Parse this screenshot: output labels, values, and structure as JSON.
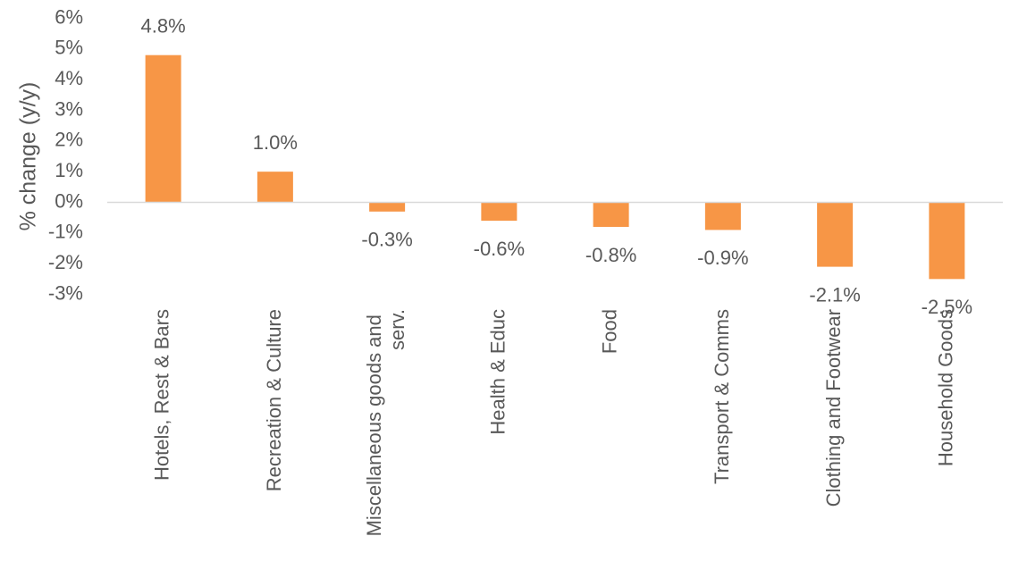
{
  "chart_data": {
    "type": "bar",
    "y_label": "% change (y/y)",
    "categories": [
      "Hotels, Rest & Bars",
      "Recreation & Culture",
      "Miscellaneous goods and serv.",
      "Health & Educ",
      "Food",
      "Transport & Comms",
      "Clothing and Footwear",
      "Household Goods"
    ],
    "values": [
      4.8,
      1.0,
      -0.3,
      -0.6,
      -0.8,
      -0.9,
      -2.1,
      -2.5
    ],
    "value_labels": [
      "4.8%",
      "1.0%",
      "-0.3%",
      "-0.6%",
      "-0.8%",
      "-0.9%",
      "-2.1%",
      "-2.5%"
    ],
    "color": "#f79646",
    "ylim": [
      -3,
      6
    ],
    "yticks": [
      {
        "value": -3,
        "label": "-3%"
      },
      {
        "value": -2,
        "label": "-2%"
      },
      {
        "value": -1,
        "label": "-1%"
      },
      {
        "value": 0,
        "label": "0%"
      },
      {
        "value": 1,
        "label": "1%"
      },
      {
        "value": 2,
        "label": "2%"
      },
      {
        "value": 3,
        "label": "3%"
      },
      {
        "value": 4,
        "label": "4%"
      },
      {
        "value": 5,
        "label": "5%"
      },
      {
        "value": 6,
        "label": "6%"
      }
    ],
    "grid": false
  }
}
